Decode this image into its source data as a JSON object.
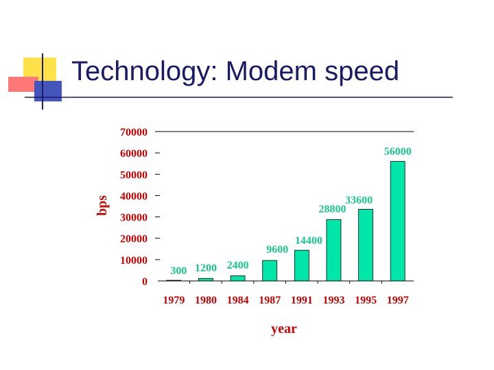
{
  "slide": {
    "title": "Technology: Modem speed"
  },
  "colors": {
    "title": "#1a1a66",
    "bar": "#00e5a8",
    "bar_label": "#19c78c",
    "axis_text": "#cc0000",
    "deco_yellow": "#ffe24a",
    "deco_red": "#ff7777",
    "deco_blue": "#4455bb"
  },
  "chart_data": {
    "type": "bar",
    "categories": [
      "1979",
      "1980",
      "1984",
      "1987",
      "1991",
      "1993",
      "1995",
      "1997"
    ],
    "values": [
      300,
      1200,
      2400,
      9600,
      14400,
      28800,
      33600,
      56000
    ],
    "data_labels": [
      "300",
      "1200",
      "2400",
      "9600",
      "14400",
      "28800",
      "33600",
      "56000"
    ],
    "yticks": [
      "0",
      "10000",
      "20000",
      "30000",
      "40000",
      "50000",
      "60000",
      "70000"
    ],
    "title": "",
    "xlabel": "year",
    "ylabel": "bps",
    "ylim": [
      0,
      70000
    ],
    "grid": false,
    "legend": "none"
  }
}
